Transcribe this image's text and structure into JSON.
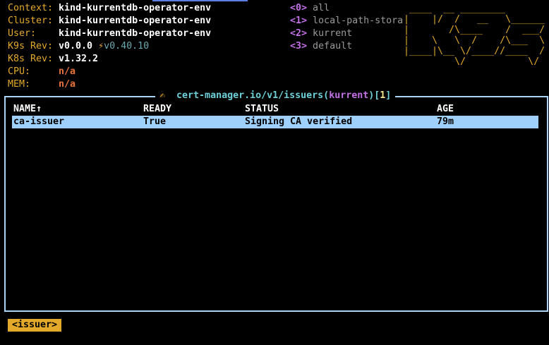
{
  "header": {
    "context_label": "Context:",
    "context": "kind-kurrentdb-operator-env",
    "cluster_label": "Cluster:",
    "cluster": "kind-kurrentdb-operator-env",
    "user_label": "User:",
    "user": "kind-kurrentdb-operator-env",
    "k9s_rev_label": "K9s Rev:",
    "k9s_rev": "v0.0.0",
    "k9s_latest": "v0.40.10",
    "k8s_rev_label": "K8s Rev:",
    "k8s_rev": "v1.32.2",
    "cpu_label": "CPU:",
    "cpu": "n/a",
    "mem_label": "MEM:",
    "mem": "n/a"
  },
  "namespaces": [
    {
      "key": "<0>",
      "name": "all"
    },
    {
      "key": "<1>",
      "name": "local-path-stora"
    },
    {
      "key": "<2>",
      "name": "kurrent"
    },
    {
      "key": "<3>",
      "name": "default"
    }
  ],
  "logo": " ____  __ ________\n|    |/  /   __   \\______\n|       /\\____    /  ___/\n|    \\   \\  /    /\\___  \\\n|____|\\__ \\/____//____  /\n         \\/           \\/",
  "view": {
    "icon": "✍",
    "resource": "cert-manager.io/v1/issuers",
    "namespace": "kurrent",
    "count": "1"
  },
  "table": {
    "columns": [
      "NAME↑",
      "READY",
      "STATUS",
      "AGE"
    ],
    "rows": [
      [
        "ca-issuer",
        "True",
        "Signing CA verified",
        "79m"
      ]
    ]
  },
  "footer": {
    "crumb": "<issuer>"
  },
  "colors": {
    "accent": "#e3a92a",
    "border": "#a9d4f5",
    "selection": "#9fd0fb",
    "namespace_key": "#c270e6"
  }
}
